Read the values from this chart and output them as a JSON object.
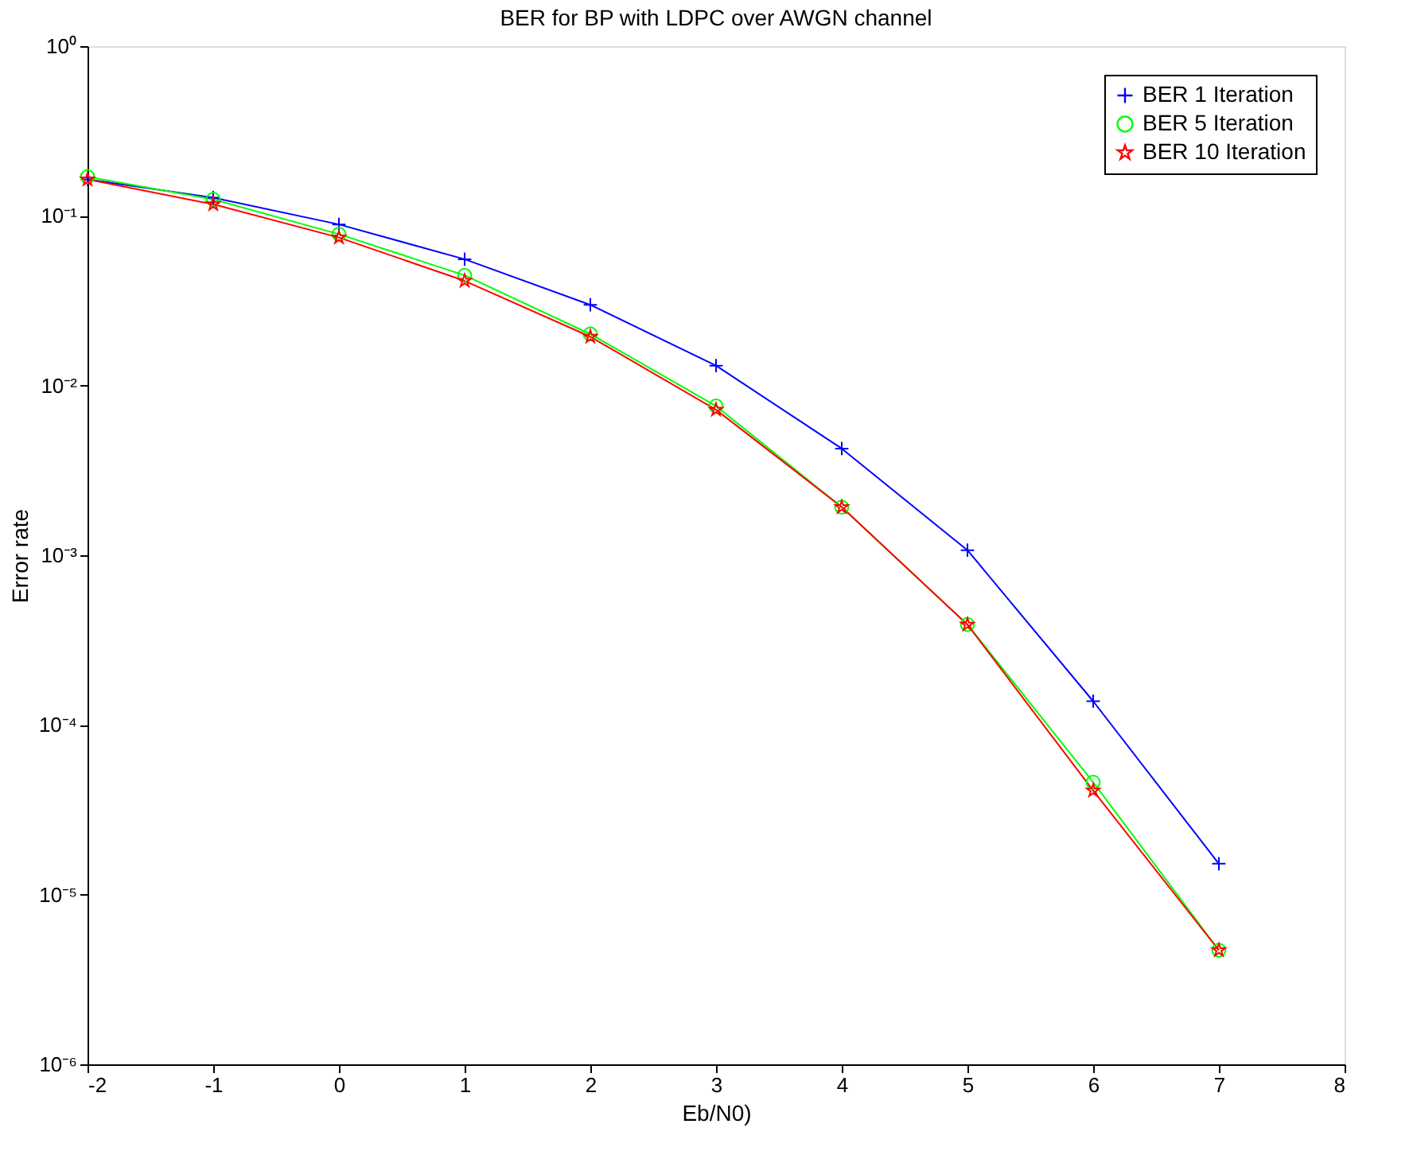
{
  "chart_data": {
    "type": "line",
    "title": "BER for BP with LDPC over AWGN channel",
    "xlabel": "Eb/N0)",
    "ylabel": "Error rate",
    "x": [
      -2,
      -1,
      0,
      1,
      2,
      3,
      4,
      5,
      6,
      7
    ],
    "series": [
      {
        "name": "BER 1 Iteration",
        "color": "#0000ff",
        "marker": "cross",
        "values": [
          0.164,
          0.128,
          0.089,
          0.0555,
          0.0299,
          0.0131,
          0.00425,
          0.00107,
          0.000138,
          1.52e-05
        ]
      },
      {
        "name": "BER 5 Iteration",
        "color": "#00ff00",
        "marker": "circle",
        "values": [
          0.17,
          0.125,
          0.078,
          0.0446,
          0.0201,
          0.00757,
          0.00192,
          0.00039,
          4.6e-05,
          4.7e-06
        ]
      },
      {
        "name": "BER 10 Iteration",
        "color": "#ff0000",
        "marker": "star",
        "values": [
          0.164,
          0.117,
          0.0745,
          0.0414,
          0.0194,
          0.0072,
          0.00192,
          0.00039,
          4.1e-05,
          4.7e-06
        ]
      }
    ],
    "xlim": [
      -2,
      8
    ],
    "xticks": [
      -2,
      -1,
      0,
      1,
      2,
      3,
      4,
      5,
      6,
      7,
      8
    ],
    "ylim": [
      1e-06,
      1
    ],
    "log": "y",
    "yticks": [
      {
        "value": 1e-06,
        "label": "10⁻⁶"
      },
      {
        "value": 1e-05,
        "label": "10⁻⁵"
      },
      {
        "value": 0.0001,
        "label": "10⁻⁴"
      },
      {
        "value": 0.001,
        "label": "10⁻³"
      },
      {
        "value": 0.01,
        "label": "10⁻²"
      },
      {
        "value": 0.1,
        "label": "10⁻¹"
      },
      {
        "value": 1,
        "label": "10⁰"
      }
    ],
    "grid": false,
    "legend": "top right",
    "line_style": "solid"
  }
}
